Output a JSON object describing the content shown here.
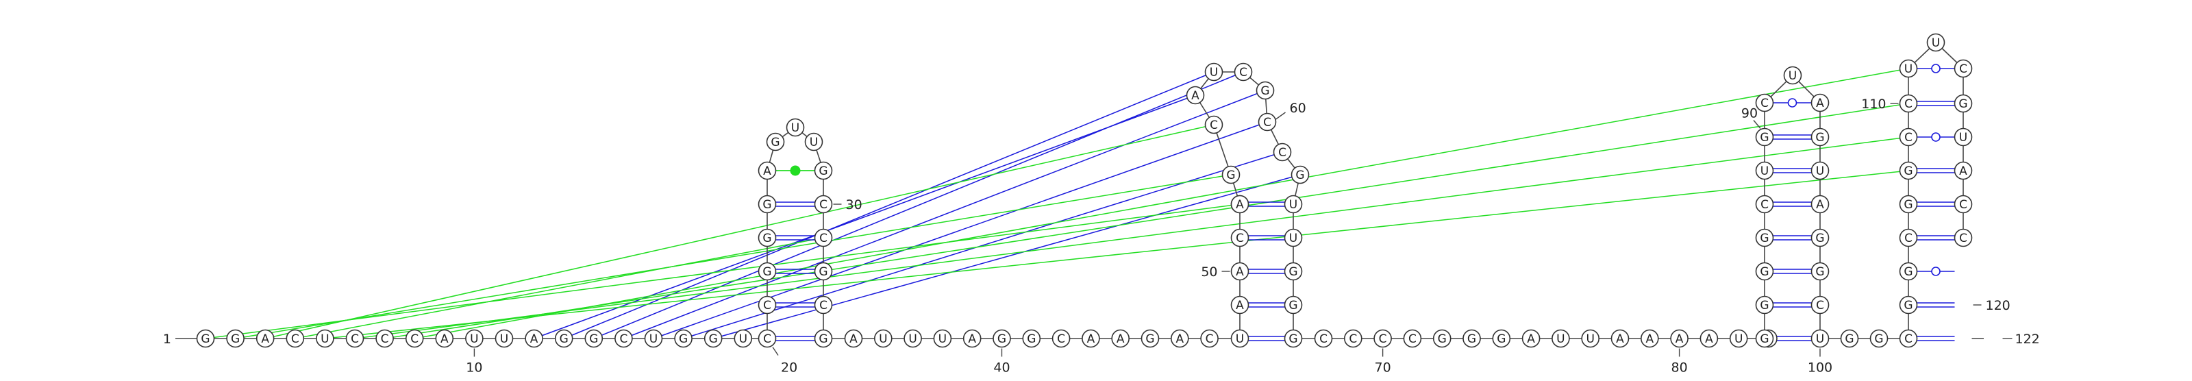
{
  "sequence": "GGACUCCCAUUAGGCUGGUCCGGGAGUUGCCGCGAUUUAGGCAAGACUAACGAGCAUCGCCGUUGGGCCCCGGGAUUAAAAUCGGGGCUGCUAGUAGGCUGGCGGCGGCCUUCGUACC",
  "numbering": [
    {
      "index": 1,
      "label": "1"
    },
    {
      "index": 10,
      "label": "10"
    },
    {
      "index": 20,
      "label": "20"
    },
    {
      "index": 30,
      "label": "30"
    },
    {
      "index": 40,
      "label": "40"
    },
    {
      "index": 50,
      "label": "50"
    },
    {
      "index": 60,
      "label": "60"
    },
    {
      "index": 70,
      "label": "70"
    },
    {
      "index": 80,
      "label": "80"
    },
    {
      "index": 90,
      "label": "90"
    },
    {
      "index": 100,
      "label": "100"
    },
    {
      "index": 110,
      "label": "110"
    },
    {
      "index": 120,
      "label": "120"
    },
    {
      "index": 122,
      "label": "122"
    }
  ],
  "pairs": [
    [
      20,
      34,
      "wc"
    ],
    [
      21,
      33,
      "wc"
    ],
    [
      22,
      32,
      "wc"
    ],
    [
      23,
      31,
      "wc"
    ],
    [
      24,
      30,
      "wc"
    ],
    [
      25,
      29,
      "nc"
    ],
    [
      48,
      67,
      "wc"
    ],
    [
      49,
      66,
      "wc"
    ],
    [
      50,
      65,
      "wc"
    ],
    [
      51,
      64,
      "wc"
    ],
    [
      52,
      63,
      "wc"
    ],
    [
      84,
      100,
      "wc"
    ],
    [
      85,
      99,
      "wc"
    ],
    [
      86,
      98,
      "wc"
    ],
    [
      87,
      97,
      "wc"
    ],
    [
      88,
      96,
      "wc"
    ],
    [
      89,
      95,
      "wc"
    ],
    [
      90,
      94,
      "wc"
    ],
    [
      91,
      93,
      "gu"
    ],
    [
      103,
      121,
      "wc"
    ],
    [
      104,
      120,
      "wc"
    ],
    [
      105,
      119,
      "gu"
    ],
    [
      106,
      118,
      "wc"
    ],
    [
      107,
      117,
      "wc"
    ],
    [
      108,
      116,
      "wc"
    ],
    [
      109,
      115,
      "gu"
    ],
    [
      110,
      114,
      "wc"
    ],
    [
      111,
      113,
      "gu"
    ]
  ],
  "pseudoknots": [
    [
      12,
      56,
      "blue"
    ],
    [
      13,
      57,
      "blue"
    ],
    [
      14,
      58,
      "blue"
    ],
    [
      15,
      59,
      "blue"
    ],
    [
      16,
      60,
      "blue"
    ],
    [
      17,
      61,
      "blue"
    ],
    [
      18,
      62,
      "blue"
    ],
    [
      1,
      53,
      "green"
    ],
    [
      2,
      54,
      "green"
    ],
    [
      3,
      55,
      "green"
    ],
    [
      4,
      31,
      "green"
    ],
    [
      5,
      108,
      "green"
    ],
    [
      6,
      109,
      "green"
    ],
    [
      7,
      110,
      "green"
    ],
    [
      8,
      111,
      "green"
    ]
  ]
}
